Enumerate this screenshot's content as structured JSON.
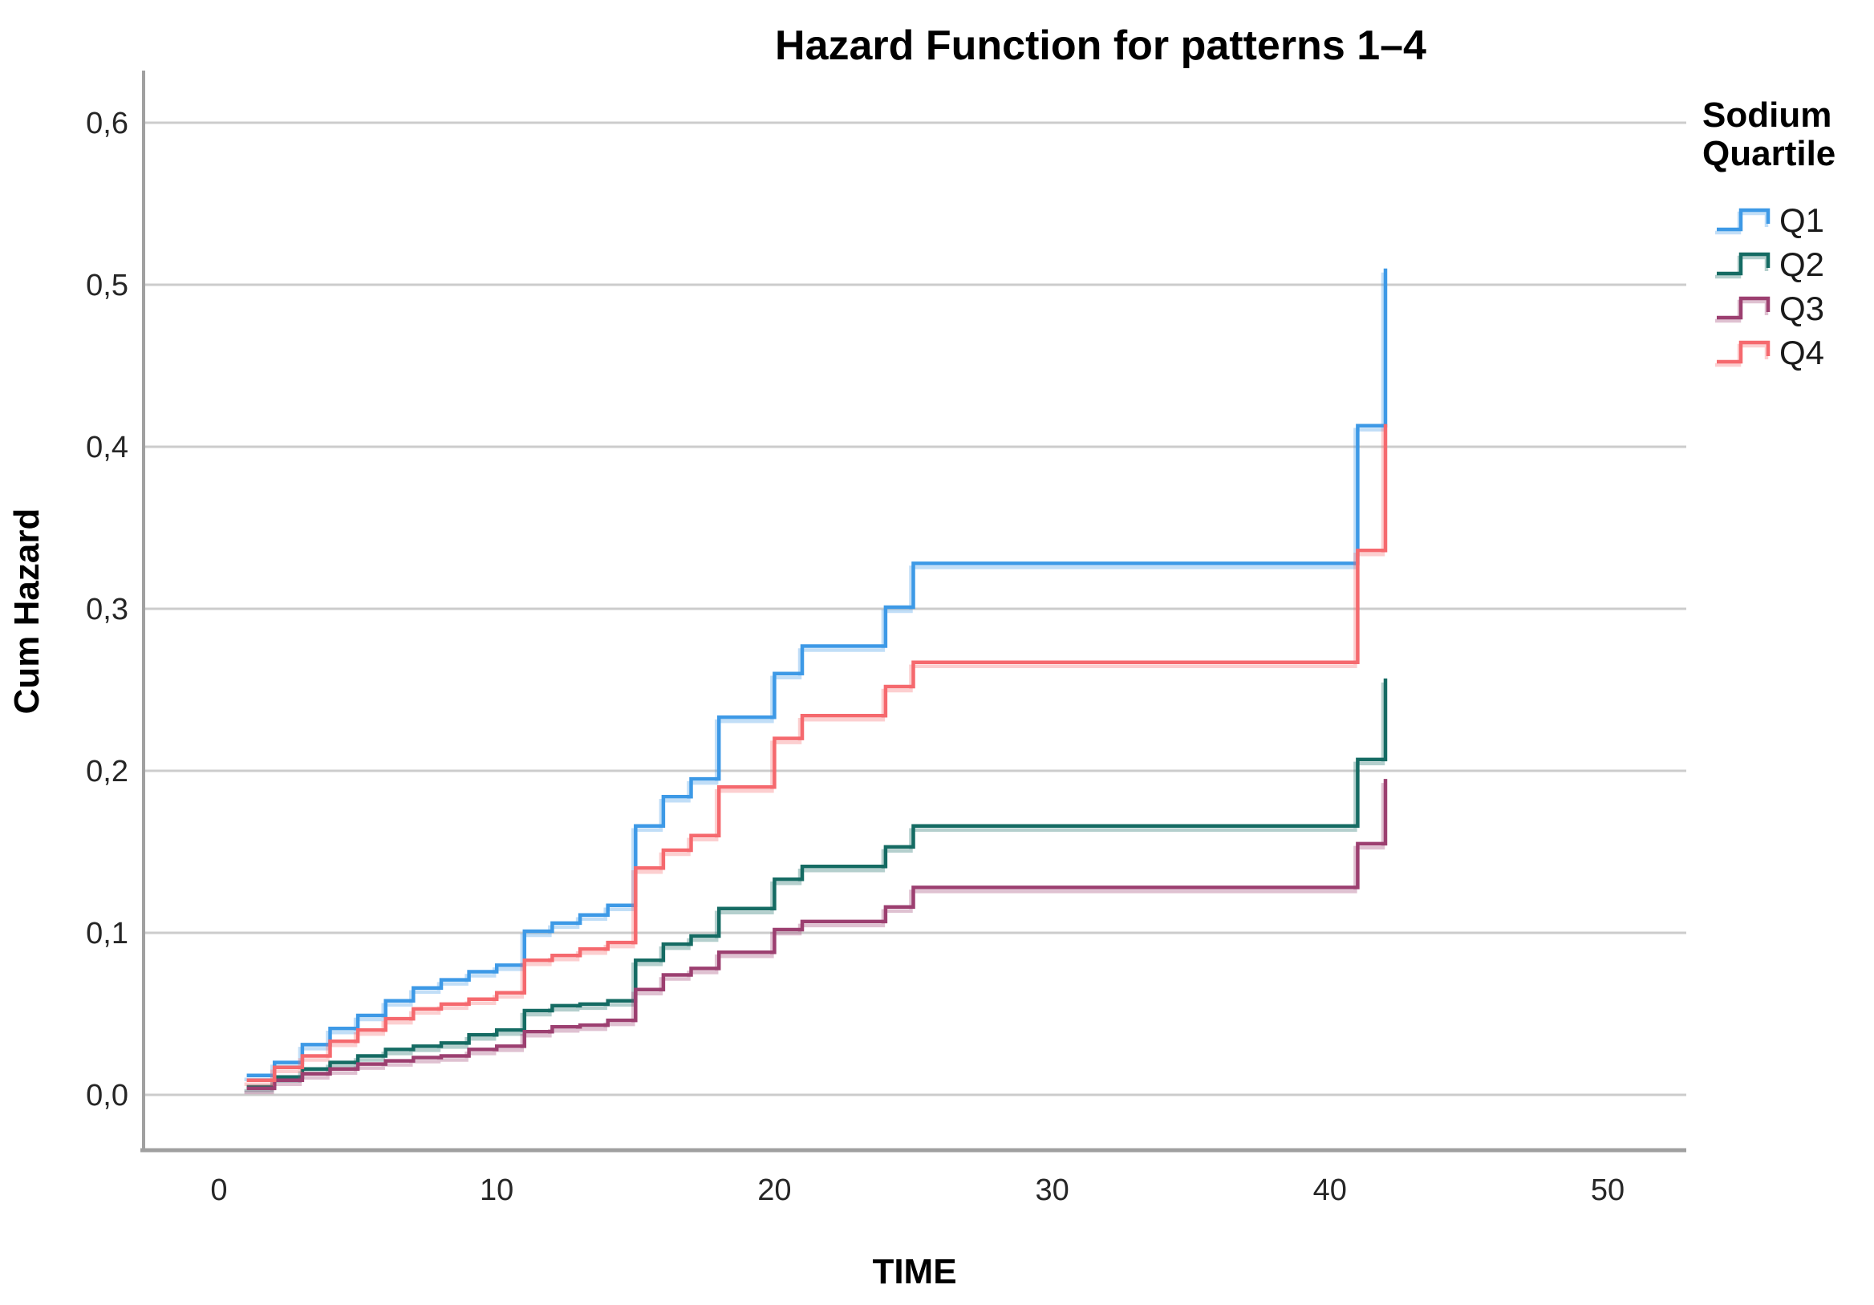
{
  "chart_data": {
    "type": "line",
    "subtype": "step-after",
    "title": "Hazard Function for patterns 1–4",
    "xlabel": "TIME",
    "ylabel": "Cum Hazard",
    "grid": "horizontal-only",
    "legend_position": "right",
    "xlim": [
      -2.7,
      52.9
    ],
    "ylim": [
      -0.034,
      0.632
    ],
    "x_ticks": [
      {
        "value": 0,
        "label": "0"
      },
      {
        "value": 10,
        "label": "10"
      },
      {
        "value": 20,
        "label": "20"
      },
      {
        "value": 30,
        "label": "30"
      },
      {
        "value": 40,
        "label": "40"
      },
      {
        "value": 50,
        "label": "50"
      }
    ],
    "y_ticks": [
      {
        "value": 0.0,
        "label": "0,0"
      },
      {
        "value": 0.1,
        "label": "0,1"
      },
      {
        "value": 0.2,
        "label": "0,2"
      },
      {
        "value": 0.3,
        "label": "0,3"
      },
      {
        "value": 0.4,
        "label": "0,4"
      },
      {
        "value": 0.5,
        "label": "0,5"
      },
      {
        "value": 0.6,
        "label": "0,6"
      }
    ],
    "series": [
      {
        "name": "Q1",
        "color": "#3d99e6",
        "points": [
          [
            1,
            0.012
          ],
          [
            2,
            0.02
          ],
          [
            3,
            0.031
          ],
          [
            4,
            0.041
          ],
          [
            5,
            0.049
          ],
          [
            6,
            0.058
          ],
          [
            7,
            0.066
          ],
          [
            8,
            0.071
          ],
          [
            9,
            0.076
          ],
          [
            10,
            0.08
          ],
          [
            11,
            0.101
          ],
          [
            12,
            0.106
          ],
          [
            13,
            0.111
          ],
          [
            14,
            0.117
          ],
          [
            15,
            0.166
          ],
          [
            16,
            0.184
          ],
          [
            17,
            0.195
          ],
          [
            18,
            0.233
          ],
          [
            20,
            0.26
          ],
          [
            21,
            0.277
          ],
          [
            24,
            0.301
          ],
          [
            25,
            0.328
          ],
          [
            41,
            0.413
          ],
          [
            42,
            0.51
          ]
        ]
      },
      {
        "name": "Q2",
        "color": "#156b63",
        "points": [
          [
            1,
            0.005
          ],
          [
            2,
            0.011
          ],
          [
            3,
            0.016
          ],
          [
            4,
            0.02
          ],
          [
            5,
            0.024
          ],
          [
            6,
            0.028
          ],
          [
            7,
            0.03
          ],
          [
            8,
            0.032
          ],
          [
            9,
            0.037
          ],
          [
            10,
            0.04
          ],
          [
            11,
            0.052
          ],
          [
            12,
            0.055
          ],
          [
            13,
            0.056
          ],
          [
            14,
            0.058
          ],
          [
            15,
            0.083
          ],
          [
            16,
            0.093
          ],
          [
            17,
            0.098
          ],
          [
            18,
            0.115
          ],
          [
            20,
            0.133
          ],
          [
            21,
            0.141
          ],
          [
            24,
            0.153
          ],
          [
            25,
            0.166
          ],
          [
            41,
            0.207
          ],
          [
            42,
            0.257
          ]
        ]
      },
      {
        "name": "Q3",
        "color": "#9c3f70",
        "points": [
          [
            1,
            0.004
          ],
          [
            2,
            0.009
          ],
          [
            3,
            0.013
          ],
          [
            4,
            0.016
          ],
          [
            5,
            0.019
          ],
          [
            6,
            0.021
          ],
          [
            7,
            0.023
          ],
          [
            8,
            0.024
          ],
          [
            9,
            0.028
          ],
          [
            10,
            0.03
          ],
          [
            11,
            0.039
          ],
          [
            12,
            0.042
          ],
          [
            13,
            0.043
          ],
          [
            14,
            0.046
          ],
          [
            15,
            0.065
          ],
          [
            16,
            0.074
          ],
          [
            17,
            0.078
          ],
          [
            18,
            0.088
          ],
          [
            20,
            0.102
          ],
          [
            21,
            0.107
          ],
          [
            24,
            0.116
          ],
          [
            25,
            0.128
          ],
          [
            41,
            0.155
          ],
          [
            42,
            0.195
          ]
        ]
      },
      {
        "name": "Q4",
        "color": "#f5696e",
        "points": [
          [
            1,
            0.009
          ],
          [
            2,
            0.017
          ],
          [
            3,
            0.024
          ],
          [
            4,
            0.033
          ],
          [
            5,
            0.04
          ],
          [
            6,
            0.047
          ],
          [
            7,
            0.053
          ],
          [
            8,
            0.056
          ],
          [
            9,
            0.059
          ],
          [
            10,
            0.063
          ],
          [
            11,
            0.083
          ],
          [
            12,
            0.086
          ],
          [
            13,
            0.09
          ],
          [
            14,
            0.094
          ],
          [
            15,
            0.14
          ],
          [
            16,
            0.151
          ],
          [
            17,
            0.16
          ],
          [
            18,
            0.19
          ],
          [
            20,
            0.22
          ],
          [
            21,
            0.234
          ],
          [
            24,
            0.252
          ],
          [
            25,
            0.267
          ],
          [
            41,
            0.336
          ],
          [
            42,
            0.414
          ]
        ]
      }
    ]
  },
  "legend": {
    "title": "Sodium Quartile",
    "title_lines": [
      "Sodium",
      "Quartile"
    ],
    "items": [
      {
        "label": "Q1",
        "color": "#3d99e6"
      },
      {
        "label": "Q2",
        "color": "#156b63"
      },
      {
        "label": "Q3",
        "color": "#9c3f70"
      },
      {
        "label": "Q4",
        "color": "#f5696e"
      }
    ]
  },
  "style_colors": {
    "gridline": "#cccccc",
    "axis": "#a0a0a0",
    "background": "#ffffff"
  }
}
